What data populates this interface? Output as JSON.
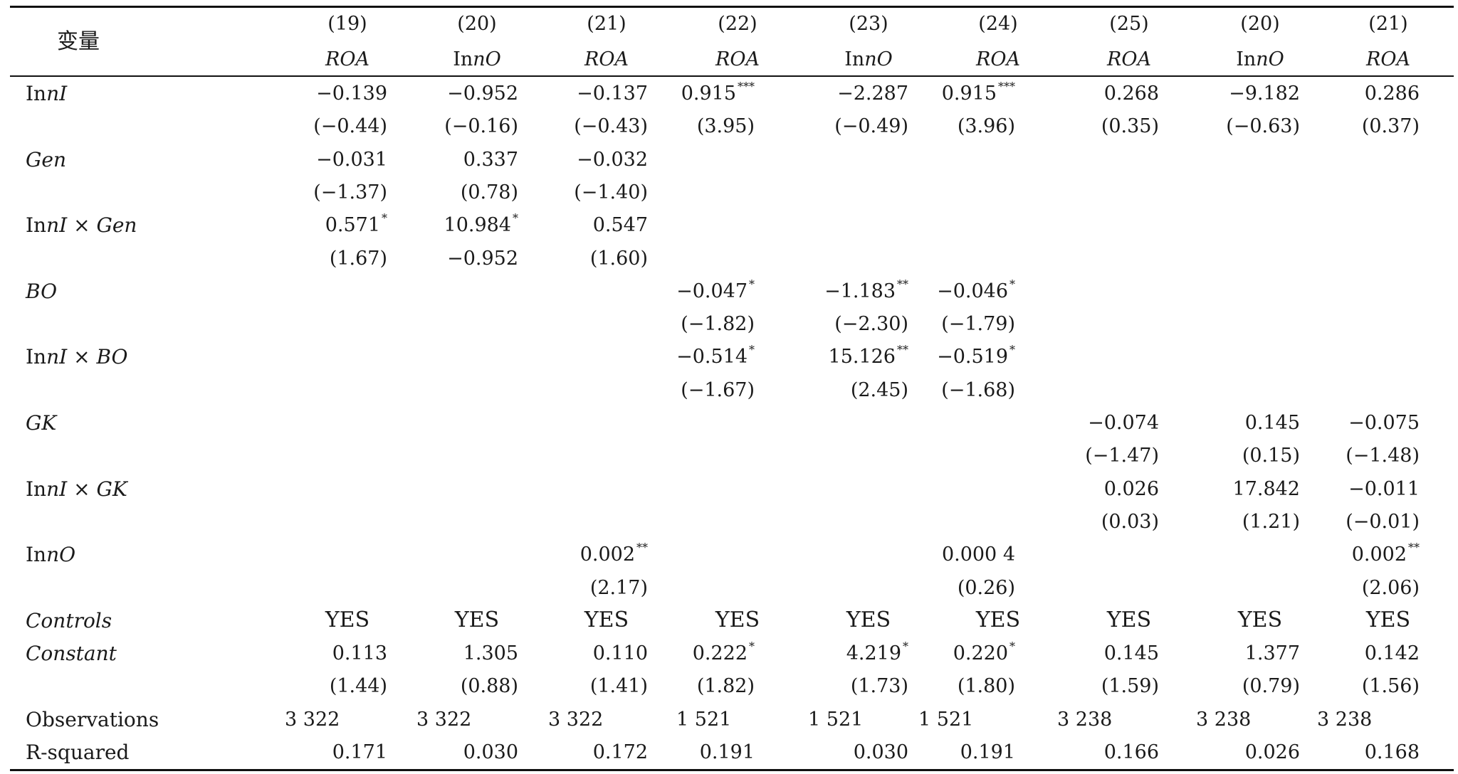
{
  "header": {
    "var_label": "变量",
    "col_numbers": [
      "(19)",
      "(20)",
      "(21)",
      "(22)",
      "(23)",
      "(24)",
      "(25)",
      "(20)",
      "(21)"
    ],
    "col_deps": [
      {
        "pre": "",
        "it": "ROA"
      },
      {
        "pre": "In",
        "it": "nO"
      },
      {
        "pre": "",
        "it": "ROA"
      },
      {
        "pre": "",
        "it": "ROA"
      },
      {
        "pre": "In",
        "it": "nO"
      },
      {
        "pre": "",
        "it": "ROA"
      },
      {
        "pre": "",
        "it": "ROA"
      },
      {
        "pre": "In",
        "it": "nO"
      },
      {
        "pre": "",
        "it": "ROA"
      }
    ]
  },
  "rows": [
    {
      "label": [
        {
          "t": "In"
        },
        {
          "t": "nI",
          "it": true
        }
      ],
      "cells": [
        {
          "col": 0,
          "v": "−0.139"
        },
        {
          "col": 1,
          "v": "−0.952"
        },
        {
          "col": 2,
          "v": "−0.137"
        },
        {
          "col": 3,
          "v": "0.915",
          "s": "***"
        },
        {
          "col": 4,
          "v": "−2.287"
        },
        {
          "col": 5,
          "v": "0.915",
          "s": "***"
        },
        {
          "col": 6,
          "v": "0.268"
        },
        {
          "col": 7,
          "v": "−9.182"
        },
        {
          "col": 8,
          "v": "0.286"
        }
      ]
    },
    {
      "label": [],
      "cells": [
        {
          "col": 0,
          "v": "(−0.44)"
        },
        {
          "col": 1,
          "v": "(−0.16)"
        },
        {
          "col": 2,
          "v": "(−0.43)"
        },
        {
          "col": 3,
          "v": "(3.95)"
        },
        {
          "col": 4,
          "v": "(−0.49)"
        },
        {
          "col": 5,
          "v": "(3.96)"
        },
        {
          "col": 6,
          "v": "(0.35)"
        },
        {
          "col": 7,
          "v": "(−0.63)"
        },
        {
          "col": 8,
          "v": "(0.37)"
        }
      ]
    },
    {
      "label": [
        {
          "t": "Gen",
          "it": true
        }
      ],
      "cells": [
        {
          "col": 0,
          "v": "−0.031"
        },
        {
          "col": 1,
          "v": "0.337"
        },
        {
          "col": 2,
          "v": "−0.032"
        }
      ]
    },
    {
      "label": [],
      "cells": [
        {
          "col": 0,
          "v": "(−1.37)"
        },
        {
          "col": 1,
          "v": "(0.78)"
        },
        {
          "col": 2,
          "v": "(−1.40)"
        }
      ]
    },
    {
      "label": [
        {
          "t": "In"
        },
        {
          "t": "nI",
          "it": true
        },
        {
          "t": " × "
        },
        {
          "t": "Gen",
          "it": true
        }
      ],
      "cells": [
        {
          "col": 0,
          "v": "0.571",
          "s": "*"
        },
        {
          "col": 1,
          "v": "10.984",
          "s": "*"
        },
        {
          "col": 2,
          "v": "0.547"
        }
      ]
    },
    {
      "label": [],
      "cells": [
        {
          "col": 0,
          "v": "(1.67)"
        },
        {
          "col": 1,
          "v": "−0.952"
        },
        {
          "col": 2,
          "v": "(1.60)"
        }
      ]
    },
    {
      "label": [
        {
          "t": "BO",
          "it": true
        }
      ],
      "cells": [
        {
          "col": 3,
          "v": "−0.047",
          "s": "*"
        },
        {
          "col": 4,
          "v": "−1.183",
          "s": "**"
        },
        {
          "col": 5,
          "v": "−0.046",
          "s": "*"
        }
      ]
    },
    {
      "label": [],
      "cells": [
        {
          "col": 3,
          "v": "(−1.82)"
        },
        {
          "col": 4,
          "v": "(−2.30)"
        },
        {
          "col": 5,
          "v": "(−1.79)"
        }
      ]
    },
    {
      "label": [
        {
          "t": "In"
        },
        {
          "t": "nI",
          "it": true
        },
        {
          "t": " × "
        },
        {
          "t": "BO",
          "it": true
        }
      ],
      "cells": [
        {
          "col": 3,
          "v": "−0.514",
          "s": "*"
        },
        {
          "col": 4,
          "v": "15.126",
          "s": "**"
        },
        {
          "col": 5,
          "v": "−0.519",
          "s": "*"
        }
      ]
    },
    {
      "label": [],
      "cells": [
        {
          "col": 3,
          "v": "(−1.67)"
        },
        {
          "col": 4,
          "v": "(2.45)"
        },
        {
          "col": 5,
          "v": "(−1.68)"
        }
      ]
    },
    {
      "label": [
        {
          "t": "GK",
          "it": true
        }
      ],
      "cells": [
        {
          "col": 6,
          "v": "−0.074"
        },
        {
          "col": 7,
          "v": "0.145"
        },
        {
          "col": 8,
          "v": "−0.075"
        }
      ]
    },
    {
      "label": [],
      "cells": [
        {
          "col": 6,
          "v": "(−1.47)"
        },
        {
          "col": 7,
          "v": "(0.15)"
        },
        {
          "col": 8,
          "v": "(−1.48)"
        }
      ]
    },
    {
      "label": [
        {
          "t": "In"
        },
        {
          "t": "nI",
          "it": true
        },
        {
          "t": " × "
        },
        {
          "t": "GK",
          "it": true
        }
      ],
      "cells": [
        {
          "col": 6,
          "v": "0.026"
        },
        {
          "col": 7,
          "v": "17.842"
        },
        {
          "col": 8,
          "v": "−0.011"
        }
      ]
    },
    {
      "label": [],
      "cells": [
        {
          "col": 6,
          "v": "(0.03)"
        },
        {
          "col": 7,
          "v": "(1.21)"
        },
        {
          "col": 8,
          "v": "(−0.01)"
        }
      ]
    },
    {
      "label": [
        {
          "t": "In"
        },
        {
          "t": "nO",
          "it": true
        }
      ],
      "cells": [
        {
          "col": 2,
          "v": "0.002",
          "s": "**"
        },
        {
          "col": 5,
          "v": "0.000 4"
        },
        {
          "col": 8,
          "v": "0.002",
          "s": "**"
        }
      ]
    },
    {
      "label": [],
      "cells": [
        {
          "col": 2,
          "v": "(2.17)"
        },
        {
          "col": 5,
          "v": "(0.26)"
        },
        {
          "col": 8,
          "v": "(2.06)"
        }
      ]
    },
    {
      "label": [
        {
          "t": "Controls",
          "it": true
        }
      ],
      "kind": "yes",
      "cells": [
        {
          "col": 0,
          "v": "YES"
        },
        {
          "col": 1,
          "v": "YES"
        },
        {
          "col": 2,
          "v": "YES"
        },
        {
          "col": 3,
          "v": "YES"
        },
        {
          "col": 4,
          "v": "YES"
        },
        {
          "col": 5,
          "v": "YES"
        },
        {
          "col": 6,
          "v": "YES"
        },
        {
          "col": 7,
          "v": "YES"
        },
        {
          "col": 8,
          "v": "YES"
        }
      ]
    },
    {
      "label": [
        {
          "t": "Constant",
          "it": true
        }
      ],
      "cells": [
        {
          "col": 0,
          "v": "0.113"
        },
        {
          "col": 1,
          "v": "1.305"
        },
        {
          "col": 2,
          "v": "0.110"
        },
        {
          "col": 3,
          "v": "0.222",
          "s": "*"
        },
        {
          "col": 4,
          "v": "4.219",
          "s": "*"
        },
        {
          "col": 5,
          "v": "0.220",
          "s": "*"
        },
        {
          "col": 6,
          "v": "0.145"
        },
        {
          "col": 7,
          "v": "1.377"
        },
        {
          "col": 8,
          "v": "0.142"
        }
      ]
    },
    {
      "label": [],
      "cells": [
        {
          "col": 0,
          "v": "(1.44)"
        },
        {
          "col": 1,
          "v": "(0.88)"
        },
        {
          "col": 2,
          "v": "(1.41)"
        },
        {
          "col": 3,
          "v": "(1.82)"
        },
        {
          "col": 4,
          "v": "(1.73)"
        },
        {
          "col": 5,
          "v": "(1.80)"
        },
        {
          "col": 6,
          "v": "(1.59)"
        },
        {
          "col": 7,
          "v": "(0.79)"
        },
        {
          "col": 8,
          "v": "(1.56)"
        }
      ]
    },
    {
      "label": [
        {
          "t": "Observations"
        }
      ],
      "kind": "obs",
      "cells": [
        {
          "col": 0,
          "v": "3 322"
        },
        {
          "col": 1,
          "v": "3 322"
        },
        {
          "col": 2,
          "v": "3 322"
        },
        {
          "col": 3,
          "v": "1 521"
        },
        {
          "col": 4,
          "v": "1 521"
        },
        {
          "col": 5,
          "v": "1 521"
        },
        {
          "col": 6,
          "v": "3 238"
        },
        {
          "col": 7,
          "v": "3 238"
        },
        {
          "col": 8,
          "v": "3 238"
        }
      ]
    },
    {
      "label": [
        {
          "t": "R-squared"
        }
      ],
      "cells": [
        {
          "col": 0,
          "v": "0.171"
        },
        {
          "col": 1,
          "v": "0.030"
        },
        {
          "col": 2,
          "v": "0.172"
        },
        {
          "col": 3,
          "v": "0.191"
        },
        {
          "col": 4,
          "v": "0.030"
        },
        {
          "col": 5,
          "v": "0.191"
        },
        {
          "col": 6,
          "v": "0.166"
        },
        {
          "col": 7,
          "v": "0.026"
        },
        {
          "col": 8,
          "v": "0.168"
        }
      ]
    }
  ]
}
